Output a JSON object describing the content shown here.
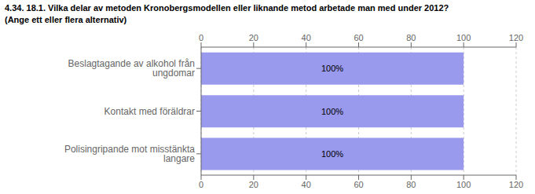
{
  "chart_data": {
    "type": "bar",
    "title": "4.34. 18.1. Vilka delar av metoden Kronobergsmodellen eller liknande metod arbetade man med under 2012?",
    "subtitle": "(Ange ett eller flera alternativ)",
    "orientation": "horizontal",
    "categories": [
      "Beslagtagande av alkohol från ungdomar",
      "Kontakt med föräldrar",
      "Polisingripande mot misstänkta langare"
    ],
    "values": [
      100,
      100,
      100
    ],
    "value_labels": [
      "100%",
      "100%",
      "100%"
    ],
    "data_labels": true,
    "color": "#9999ee",
    "xlim": [
      0,
      120
    ],
    "xticks": [
      0,
      20,
      40,
      60,
      80,
      100,
      120
    ],
    "grid": true
  }
}
